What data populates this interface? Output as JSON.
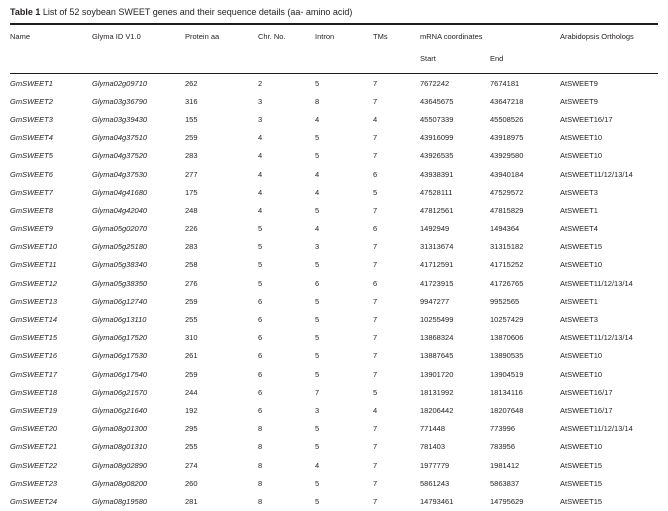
{
  "title": {
    "label": "Table 1",
    "text": " List of 52 soybean SWEET genes and their sequence details (aa- amino acid)"
  },
  "table": {
    "headers": {
      "name": "Name",
      "glyma_id": "Glyma ID V1.0",
      "protein_aa": "Protein aa",
      "chr_no": "Chr. No.",
      "intron": "Intron",
      "tms": "TMs",
      "mrna_coordinates": "mRNA coordinates",
      "start": "Start",
      "end": "End",
      "arabidopsis_orthologs": "Arabidopsis Orthologs"
    },
    "rows": [
      [
        "GmSWEET1",
        "Glyma02g09710",
        "262",
        "2",
        "5",
        "7",
        "7672242",
        "7674181",
        "AtSWEET9"
      ],
      [
        "GmSWEET2",
        "Glyma03g36790",
        "316",
        "3",
        "8",
        "7",
        "43645675",
        "43647218",
        "AtSWEET9"
      ],
      [
        "GmSWEET3",
        "Glyma03g39430",
        "155",
        "3",
        "4",
        "4",
        "45507339",
        "45508526",
        "AtSWEET16/17"
      ],
      [
        "GmSWEET4",
        "Glyma04g37510",
        "259",
        "4",
        "5",
        "7",
        "43916099",
        "43918975",
        "AtSWEET10"
      ],
      [
        "GmSWEET5",
        "Glyma04g37520",
        "283",
        "4",
        "5",
        "7",
        "43926535",
        "43929580",
        "AtSWEET10"
      ],
      [
        "GmSWEET6",
        "Glyma04g37530",
        "277",
        "4",
        "4",
        "6",
        "43938391",
        "43940184",
        "AtSWEET11/12/13/14"
      ],
      [
        "GmSWEET7",
        "Glyma04g41680",
        "175",
        "4",
        "4",
        "5",
        "47528111",
        "47529572",
        "AtSWEET3"
      ],
      [
        "GmSWEET8",
        "Glyma04g42040",
        "248",
        "4",
        "5",
        "7",
        "47812561",
        "47815829",
        "AtSWEET1"
      ],
      [
        "GmSWEET9",
        "Glyma05g02070",
        "226",
        "5",
        "4",
        "6",
        "1492949",
        "1494364",
        "AtSWEET4"
      ],
      [
        "GmSWEET10",
        "Glyma05g25180",
        "283",
        "5",
        "3",
        "7",
        "31313674",
        "31315182",
        "AtSWEET15"
      ],
      [
        "GmSWEET11",
        "Glyma05g38340",
        "258",
        "5",
        "5",
        "7",
        "41712591",
        "41715252",
        "AtSWEET10"
      ],
      [
        "GmSWEET12",
        "Glyma05g38350",
        "276",
        "5",
        "6",
        "6",
        "41723915",
        "41726765",
        "AtSWEET11/12/13/14"
      ],
      [
        "GmSWEET13",
        "Glyma06g12740",
        "259",
        "6",
        "5",
        "7",
        "9947277",
        "9952565",
        "AtSWEET1"
      ],
      [
        "GmSWEET14",
        "Glyma06g13110",
        "255",
        "6",
        "5",
        "7",
        "10255499",
        "10257429",
        "AtSWEET3"
      ],
      [
        "GmSWEET15",
        "Glyma06g17520",
        "310",
        "6",
        "5",
        "7",
        "13868324",
        "13870606",
        "AtSWEET11/12/13/14"
      ],
      [
        "GmSWEET16",
        "Glyma06g17530",
        "261",
        "6",
        "5",
        "7",
        "13887645",
        "13890535",
        "AtSWEET10"
      ],
      [
        "GmSWEET17",
        "Glyma06g17540",
        "259",
        "6",
        "5",
        "7",
        "13901720",
        "13904519",
        "AtSWEET10"
      ],
      [
        "GmSWEET18",
        "Glyma06g21570",
        "244",
        "6",
        "7",
        "5",
        "18131992",
        "18134116",
        "AtSWEET16/17"
      ],
      [
        "GmSWEET19",
        "Glyma06g21640",
        "192",
        "6",
        "3",
        "4",
        "18206442",
        "18207648",
        "AtSWEET16/17"
      ],
      [
        "GmSWEET20",
        "Glyma08g01300",
        "295",
        "8",
        "5",
        "7",
        "771448",
        "773996",
        "AtSWEET11/12/13/14"
      ],
      [
        "GmSWEET21",
        "Glyma08g01310",
        "255",
        "8",
        "5",
        "7",
        "781403",
        "783956",
        "AtSWEET10"
      ],
      [
        "GmSWEET22",
        "Glyma08g02890",
        "274",
        "8",
        "4",
        "7",
        "1977779",
        "1981412",
        "AtSWEET15"
      ],
      [
        "GmSWEET23",
        "Glyma08g08200",
        "260",
        "8",
        "5",
        "7",
        "5861243",
        "5863837",
        "AtSWEET15"
      ],
      [
        "GmSWEET24",
        "Glyma08g19580",
        "281",
        "8",
        "5",
        "7",
        "14793461",
        "14795629",
        "AtSWEET15"
      ]
    ]
  }
}
